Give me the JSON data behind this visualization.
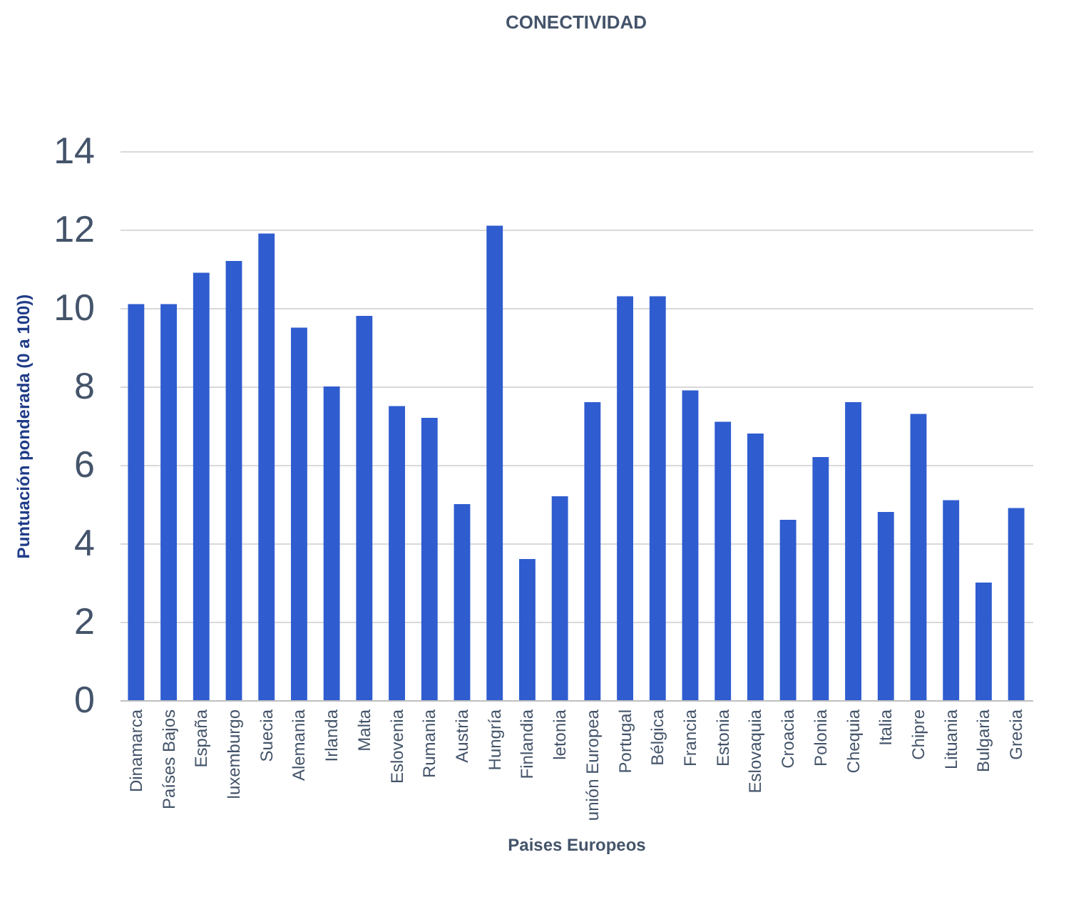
{
  "chart_data": {
    "type": "bar",
    "title": "CONECTIVIDAD",
    "xlabel": "Paises Europeos",
    "ylabel": "Puntuación ponderada (0 a 100))",
    "categories": [
      "Dinamarca",
      "Países Bajos",
      "España",
      "luxemburgo",
      "Suecia",
      "Alemania",
      "Irlanda",
      "Malta",
      "Eslovenia",
      "Rumania",
      "Austria",
      "Hungría",
      "Finlandia",
      "letonia",
      "unión Europea",
      "Portugal",
      "Bélgica",
      "Francia",
      "Estonia",
      "Eslovaquia",
      "Croacia",
      "Polonia",
      "Chequia",
      "Italia",
      "Chipre",
      "Lituania",
      "Bulgaria",
      "Grecia"
    ],
    "values": [
      10.1,
      10.1,
      10.9,
      11.2,
      11.9,
      9.5,
      8.0,
      9.8,
      7.5,
      7.2,
      5.0,
      12.1,
      3.6,
      5.2,
      7.6,
      10.3,
      10.3,
      7.9,
      7.1,
      6.8,
      4.6,
      6.2,
      7.6,
      4.8,
      7.3,
      5.1,
      3.0,
      4.9
    ],
    "color": "#2f5ccf",
    "ylim": [
      0,
      14
    ],
    "yticks": [
      0,
      2,
      4,
      6,
      8,
      10,
      12,
      14
    ],
    "grid": "y"
  }
}
